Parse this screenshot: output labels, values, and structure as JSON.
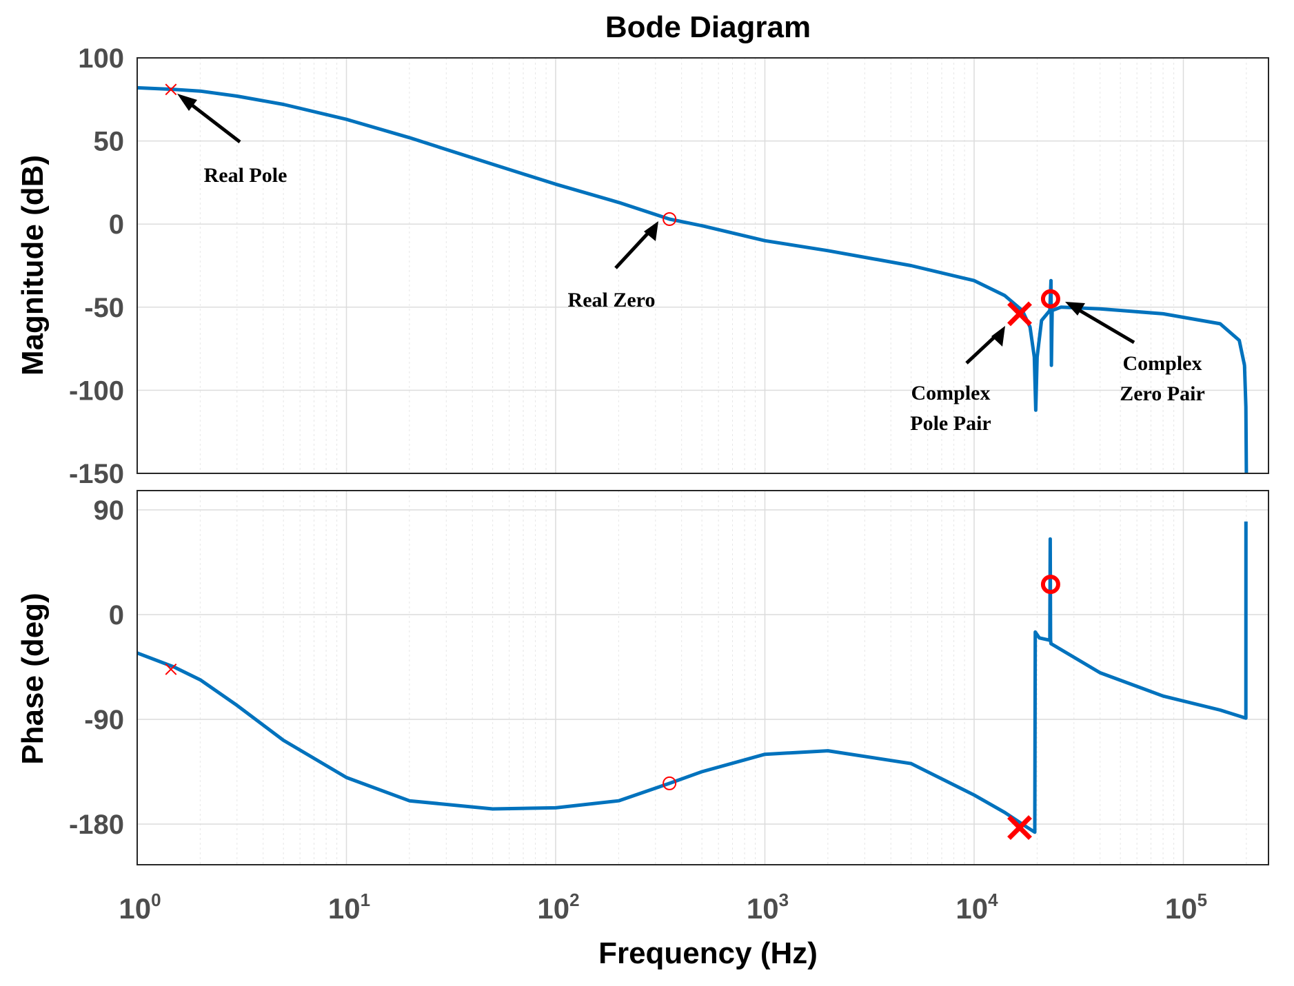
{
  "chart_data": {
    "type": "line",
    "title": "Bode Diagram",
    "xlabel": "Frequency  (Hz)",
    "x_scale": "log",
    "xlim": [
      1,
      300000
    ],
    "x_ticks": [
      {
        "base": "10",
        "exp": "0"
      },
      {
        "base": "10",
        "exp": "1"
      },
      {
        "base": "10",
        "exp": "2"
      },
      {
        "base": "10",
        "exp": "3"
      },
      {
        "base": "10",
        "exp": "4"
      },
      {
        "base": "10",
        "exp": "5"
      }
    ],
    "magnitude": {
      "ylabel": "Magnitude (dB)",
      "ylim": [
        -150,
        100
      ],
      "yticks": [
        "100",
        "50",
        "0",
        "-50",
        "-100",
        "-150"
      ],
      "series": {
        "name": "Magnitude",
        "color": "#0072bd",
        "points": [
          [
            1,
            82
          ],
          [
            1.5,
            81
          ],
          [
            2,
            80
          ],
          [
            3,
            77
          ],
          [
            5,
            72
          ],
          [
            10,
            63
          ],
          [
            20,
            52
          ],
          [
            50,
            36
          ],
          [
            100,
            24
          ],
          [
            200,
            13
          ],
          [
            350,
            3
          ],
          [
            500,
            -1
          ],
          [
            1000,
            -10
          ],
          [
            2000,
            -16
          ],
          [
            5000,
            -25
          ],
          [
            10000,
            -34
          ],
          [
            14000,
            -43
          ],
          [
            17000,
            -52
          ],
          [
            18500,
            -62
          ],
          [
            19400,
            -80
          ],
          [
            19700,
            -112
          ],
          [
            20000,
            -80
          ],
          [
            21000,
            -58
          ],
          [
            23000,
            -52
          ],
          [
            23300,
            -34
          ],
          [
            23400,
            -85
          ],
          [
            23600,
            -52
          ],
          [
            26000,
            -50
          ],
          [
            40000,
            -51
          ],
          [
            80000,
            -54
          ],
          [
            150000,
            -60
          ],
          [
            185000,
            -70
          ],
          [
            196000,
            -85
          ],
          [
            199000,
            -110
          ],
          [
            200000,
            -150
          ]
        ]
      },
      "markers": [
        {
          "kind": "pole",
          "label": "Real Pole",
          "x": 1.45,
          "y": 81,
          "size": "small",
          "color": "#ff0000"
        },
        {
          "kind": "zero",
          "label": "Real Zero",
          "x": 350,
          "y": 3,
          "size": "small",
          "color": "#ff0000"
        },
        {
          "kind": "pole",
          "label": "Complex Pole Pair",
          "x": 16500,
          "y": -54,
          "size": "large",
          "color": "#ff0000"
        },
        {
          "kind": "zero",
          "label": "Complex Zero Pair",
          "x": 23200,
          "y": -45,
          "size": "large",
          "color": "#ff0000"
        }
      ]
    },
    "phase": {
      "ylabel": "Phase (deg)",
      "ylim": [
        -215,
        100
      ],
      "yticks": [
        "90",
        "0",
        "-90",
        "-180"
      ],
      "tick_values": [
        90,
        0,
        -90,
        -180
      ],
      "series": {
        "name": "Phase",
        "color": "#0072bd",
        "points": [
          [
            1,
            -33
          ],
          [
            1.5,
            -45
          ],
          [
            2,
            -56
          ],
          [
            3,
            -78
          ],
          [
            5,
            -108
          ],
          [
            10,
            -140
          ],
          [
            20,
            -160
          ],
          [
            50,
            -167
          ],
          [
            100,
            -166
          ],
          [
            200,
            -160
          ],
          [
            350,
            -145
          ],
          [
            500,
            -135
          ],
          [
            1000,
            -120
          ],
          [
            2000,
            -117
          ],
          [
            5000,
            -128
          ],
          [
            10000,
            -155
          ],
          [
            14000,
            -170
          ],
          [
            18000,
            -183
          ],
          [
            19500,
            -187
          ],
          [
            19600,
            -15
          ],
          [
            20500,
            -20
          ],
          [
            23000,
            -22
          ],
          [
            23100,
            65
          ],
          [
            23200,
            -22
          ],
          [
            23300,
            -25
          ],
          [
            40000,
            -50
          ],
          [
            80000,
            -70
          ],
          [
            150000,
            -82
          ],
          [
            199000,
            -89
          ],
          [
            199200,
            80
          ]
        ]
      },
      "markers": [
        {
          "kind": "pole",
          "x": 1.45,
          "y": -47,
          "size": "small",
          "color": "#ff0000"
        },
        {
          "kind": "zero",
          "x": 350,
          "y": -145,
          "size": "small",
          "color": "#ff0000"
        },
        {
          "kind": "pole",
          "x": 16500,
          "y": -183,
          "size": "large",
          "color": "#ff0000"
        },
        {
          "kind": "zero",
          "x": 23200,
          "y": 26,
          "size": "large",
          "color": "#ff0000"
        }
      ]
    },
    "annotations": [
      {
        "id": "real-pole",
        "lines": [
          "Real Pole"
        ]
      },
      {
        "id": "real-zero",
        "lines": [
          "Real Zero"
        ]
      },
      {
        "id": "complex-pole-pair",
        "lines": [
          "Complex",
          "Pole Pair"
        ]
      },
      {
        "id": "complex-zero-pair",
        "lines": [
          "Complex",
          "Zero Pair"
        ]
      }
    ]
  }
}
